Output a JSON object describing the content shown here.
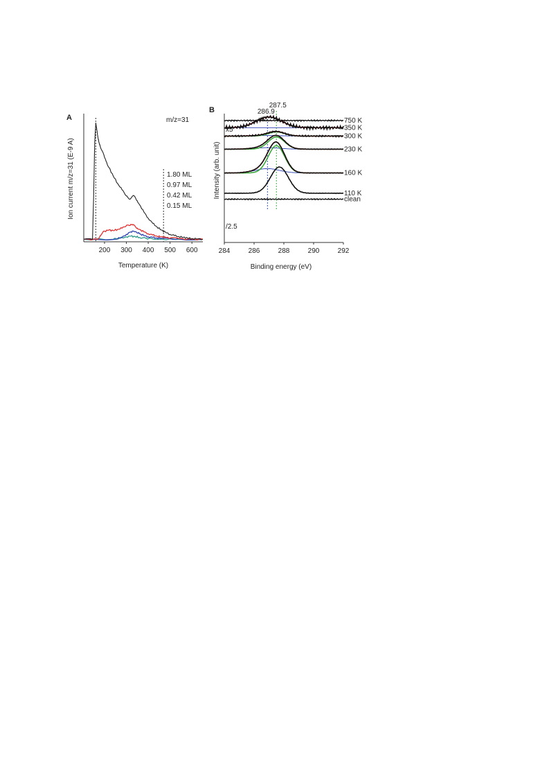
{
  "chart_data": [
    {
      "type": "line",
      "panel_label": "A",
      "annotation": "m/z=31",
      "ylabel": "Ion current m/z=31 (E-9 A)",
      "xlabel": "Temperature (K)",
      "xlim": [
        105,
        650
      ],
      "ylim": [
        0,
        1.0
      ],
      "x_ticks": [
        "200",
        "300",
        "400",
        "500",
        "600"
      ],
      "x_tick_values": [
        200,
        300,
        400,
        500,
        600
      ],
      "ref_lines": [
        160,
        470
      ],
      "legend": [
        "1.80 ML",
        "0.97 ML",
        "0.42 ML",
        "0.15 ML"
      ],
      "series": [
        {
          "name": "1.80 ML",
          "color": "#222222",
          "x": [
            105,
            145,
            150,
            155,
            160,
            165,
            170,
            175,
            180,
            190,
            200,
            210,
            220,
            240,
            260,
            280,
            300,
            310,
            320,
            330,
            340,
            350,
            360,
            380,
            400,
            420,
            440,
            460,
            480,
            500,
            520,
            540,
            560,
            580,
            600,
            620,
            650
          ],
          "y": [
            0.02,
            0.02,
            0.35,
            0.8,
            0.96,
            0.9,
            0.84,
            0.8,
            0.77,
            0.73,
            0.68,
            0.64,
            0.6,
            0.53,
            0.47,
            0.42,
            0.37,
            0.35,
            0.35,
            0.37,
            0.36,
            0.33,
            0.3,
            0.24,
            0.19,
            0.15,
            0.12,
            0.095,
            0.075,
            0.06,
            0.05,
            0.042,
            0.035,
            0.03,
            0.026,
            0.023,
            0.02
          ]
        },
        {
          "name": "0.97 ML",
          "color": "#e03030",
          "x": [
            105,
            170,
            180,
            190,
            200,
            220,
            240,
            260,
            280,
            300,
            310,
            320,
            330,
            340,
            350,
            360,
            380,
            400,
            420,
            440,
            460,
            480,
            500,
            540,
            600,
            650
          ],
          "y": [
            0.02,
            0.02,
            0.05,
            0.07,
            0.085,
            0.095,
            0.09,
            0.1,
            0.11,
            0.13,
            0.135,
            0.14,
            0.135,
            0.125,
            0.11,
            0.1,
            0.08,
            0.065,
            0.055,
            0.045,
            0.04,
            0.035,
            0.03,
            0.025,
            0.02,
            0.02
          ]
        },
        {
          "name": "0.42 ML",
          "color": "#2a3fb0",
          "x": [
            105,
            250,
            280,
            300,
            320,
            335,
            345,
            360,
            380,
            400,
            420,
            440,
            460,
            500,
            550,
            650
          ],
          "y": [
            0.02,
            0.02,
            0.035,
            0.06,
            0.08,
            0.085,
            0.08,
            0.065,
            0.05,
            0.04,
            0.035,
            0.03,
            0.028,
            0.024,
            0.02,
            0.02
          ]
        },
        {
          "name": "0.15 ML",
          "color": "#2a9a8a",
          "x": [
            105,
            240,
            270,
            300,
            320,
            340,
            360,
            390,
            420,
            460,
            550,
            650
          ],
          "y": [
            0.02,
            0.02,
            0.03,
            0.04,
            0.045,
            0.042,
            0.035,
            0.028,
            0.024,
            0.022,
            0.02,
            0.02
          ]
        }
      ]
    },
    {
      "type": "line",
      "panel_label": "B",
      "ylabel": "Intensity (arb. unit)",
      "xlabel": "Binding energy (eV)",
      "xlim": [
        284,
        292
      ],
      "x_ticks": [
        "284",
        "286",
        "288",
        "290",
        "292"
      ],
      "x_tick_values": [
        284,
        286,
        288,
        290,
        292
      ],
      "ref_lines": [
        {
          "x": 286.9,
          "label": "286.9",
          "color": "#3a4fc0"
        },
        {
          "x": 287.5,
          "label": "287.5",
          "color": "#4aa84a"
        }
      ],
      "scale_labels": [
        "x5",
        "/2.5"
      ],
      "spectra": [
        {
          "name": "750 K",
          "baseline": 0.0,
          "amp": 0.0
        },
        {
          "name": "350 K",
          "baseline": 0.06,
          "amp": 0.09
        },
        {
          "name": "300 K",
          "baseline": 0.13,
          "amp": 0.04
        },
        {
          "name": "230 K",
          "baseline": 0.24,
          "amp": 0.12
        },
        {
          "name": "160 K",
          "baseline": 0.44,
          "amp": 0.27
        },
        {
          "name": "110 K",
          "baseline": 0.61,
          "amp": 0.22
        },
        {
          "name": "clean",
          "baseline": 0.66,
          "amp": 0.0
        }
      ]
    }
  ]
}
